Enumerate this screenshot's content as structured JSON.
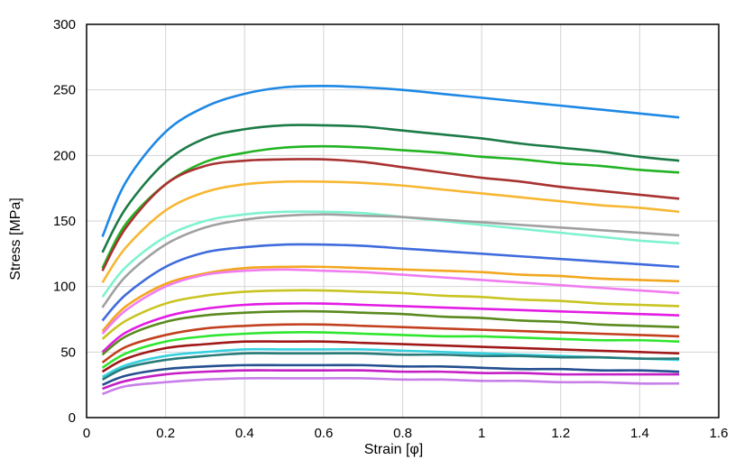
{
  "chart_data": {
    "type": "line",
    "title": "",
    "xlabel": "Strain [φ]",
    "ylabel": "Stress [MPa]",
    "xlim": [
      0,
      1.6
    ],
    "ylim": [
      0,
      300
    ],
    "xticks": [
      0,
      0.2,
      0.4,
      0.6,
      0.8,
      1,
      1.2,
      1.4,
      1.6
    ],
    "xtick_labels": [
      "0",
      "0.2",
      "0.4",
      "0.6",
      "0.8",
      "1",
      "1.2",
      "1.4",
      "1.6"
    ],
    "yticks": [
      0,
      50,
      100,
      150,
      200,
      250,
      300
    ],
    "ytick_labels": [
      "0",
      "50",
      "100",
      "150",
      "200",
      "250",
      "300"
    ],
    "grid": true,
    "legend": "none",
    "x": [
      0.04,
      0.1,
      0.2,
      0.3,
      0.4,
      0.5,
      0.6,
      0.7,
      0.8,
      0.9,
      1.0,
      1.1,
      1.2,
      1.3,
      1.4,
      1.5
    ],
    "series": [
      {
        "color": "#1e88e5",
        "values": [
          138,
          180,
          218,
          237,
          247,
          252,
          253,
          252,
          250,
          247,
          244,
          241,
          238,
          235,
          232,
          229
        ]
      },
      {
        "color": "#1b7a46",
        "values": [
          126,
          160,
          195,
          213,
          220,
          223,
          223,
          222,
          219,
          216,
          213,
          209,
          206,
          203,
          199,
          196
        ]
      },
      {
        "color": "#22b322",
        "values": [
          114,
          148,
          178,
          195,
          202,
          206,
          207,
          206,
          204,
          202,
          199,
          197,
          194,
          192,
          189,
          187
        ]
      },
      {
        "color": "#a83232",
        "values": [
          112,
          145,
          178,
          192,
          196,
          197,
          197,
          195,
          191,
          187,
          183,
          180,
          176,
          173,
          170,
          167
        ]
      },
      {
        "color": "#f7b733",
        "values": [
          103,
          130,
          158,
          172,
          178,
          180,
          180,
          179,
          177,
          174,
          171,
          168,
          165,
          162,
          160,
          157
        ]
      },
      {
        "color": "#7ff2cf",
        "values": [
          92,
          115,
          138,
          150,
          155,
          157,
          157,
          156,
          153,
          150,
          147,
          144,
          141,
          138,
          135,
          133
        ]
      },
      {
        "color": "#a0a0a0",
        "values": [
          84,
          108,
          132,
          145,
          151,
          154,
          155,
          154,
          153,
          151,
          149,
          147,
          145,
          143,
          141,
          139
        ]
      },
      {
        "color": "#3f6bdc",
        "values": [
          74,
          94,
          115,
          126,
          130,
          132,
          132,
          131,
          129,
          127,
          125,
          123,
          121,
          119,
          117,
          115
        ]
      },
      {
        "color": "#f2a71f",
        "values": [
          66,
          85,
          102,
          110,
          114,
          115,
          115,
          114,
          113,
          112,
          111,
          109,
          108,
          106,
          105,
          104
        ]
      },
      {
        "color": "#f07cf0",
        "values": [
          64,
          82,
          100,
          109,
          112,
          113,
          112,
          111,
          109,
          107,
          105,
          103,
          101,
          99,
          97,
          95
        ]
      },
      {
        "color": "#c9c421",
        "values": [
          60,
          74,
          87,
          93,
          96,
          97,
          97,
          96,
          95,
          93,
          92,
          90,
          89,
          87,
          86,
          85
        ]
      },
      {
        "color": "#e31ce3",
        "values": [
          50,
          65,
          77,
          83,
          86,
          87,
          87,
          86,
          85,
          84,
          83,
          82,
          81,
          80,
          79,
          78
        ]
      },
      {
        "color": "#5a8a1f",
        "values": [
          48,
          62,
          73,
          78,
          80,
          81,
          81,
          80,
          79,
          77,
          76,
          74,
          73,
          71,
          70,
          69
        ]
      },
      {
        "color": "#c2401f",
        "values": [
          42,
          54,
          63,
          68,
          70,
          71,
          71,
          70,
          69,
          68,
          67,
          66,
          65,
          64,
          63,
          62
        ]
      },
      {
        "color": "#2ee62e",
        "values": [
          38,
          49,
          58,
          62,
          64,
          65,
          65,
          64,
          63,
          62,
          62,
          61,
          60,
          59,
          59,
          58
        ]
      },
      {
        "color": "#a01818",
        "values": [
          35,
          45,
          53,
          56,
          58,
          58,
          58,
          57,
          56,
          55,
          54,
          53,
          52,
          51,
          50,
          49
        ]
      },
      {
        "color": "#36d0e0",
        "values": [
          31,
          40,
          47,
          50,
          52,
          52,
          52,
          52,
          51,
          50,
          49,
          48,
          47,
          46,
          45,
          44
        ]
      },
      {
        "color": "#2a7a7a",
        "values": [
          29,
          38,
          44,
          47,
          49,
          49,
          49,
          49,
          48,
          48,
          47,
          47,
          46,
          46,
          45,
          45
        ]
      },
      {
        "color": "#244f8f",
        "values": [
          25,
          32,
          37,
          39,
          40,
          40,
          40,
          40,
          39,
          39,
          38,
          37,
          37,
          36,
          36,
          35
        ]
      },
      {
        "color": "#c51ec5",
        "values": [
          22,
          28,
          33,
          35,
          36,
          36,
          36,
          36,
          35,
          35,
          34,
          34,
          33,
          33,
          33,
          33
        ]
      },
      {
        "color": "#c77ee8",
        "values": [
          18,
          24,
          27,
          29,
          30,
          30,
          30,
          30,
          29,
          29,
          28,
          28,
          27,
          27,
          26,
          26
        ]
      }
    ]
  }
}
